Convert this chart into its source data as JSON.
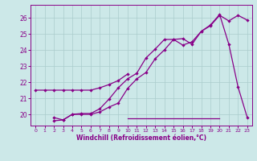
{
  "bg_color": "#cce8e8",
  "grid_color": "#aacccc",
  "line_color": "#880088",
  "xlabel": "Windchill (Refroidissement éolien,°C)",
  "xlim": [
    -0.5,
    23.5
  ],
  "ylim": [
    19.3,
    26.8
  ],
  "yticks": [
    20,
    21,
    22,
    23,
    24,
    25,
    26
  ],
  "xticks": [
    0,
    1,
    2,
    3,
    4,
    5,
    6,
    7,
    8,
    9,
    10,
    11,
    12,
    13,
    14,
    15,
    16,
    17,
    18,
    19,
    20,
    21,
    22,
    23
  ],
  "line1_x": [
    0,
    1,
    2,
    3,
    4,
    5,
    6,
    7,
    8,
    9,
    10
  ],
  "line1_y": [
    21.5,
    21.5,
    21.5,
    21.5,
    21.5,
    21.5,
    21.5,
    21.65,
    21.85,
    22.1,
    22.5
  ],
  "line2_x": [
    2,
    3,
    4,
    5,
    6,
    7,
    8,
    9,
    10,
    11,
    12,
    13,
    14,
    15,
    16,
    17,
    18,
    19,
    20,
    21,
    22,
    23
  ],
  "line2_y": [
    19.8,
    19.65,
    20.0,
    20.05,
    20.05,
    20.35,
    20.95,
    21.65,
    22.2,
    22.55,
    23.5,
    24.05,
    24.65,
    24.65,
    24.3,
    24.5,
    25.15,
    25.5,
    26.15,
    25.8,
    26.15,
    25.85
  ],
  "line3_x": [
    2,
    3,
    4,
    5,
    6,
    7,
    8,
    9,
    10,
    11,
    12,
    13,
    14,
    15,
    16,
    17,
    18,
    19,
    20,
    21,
    22,
    23
  ],
  "line3_y": [
    19.6,
    19.65,
    20.0,
    20.0,
    20.0,
    20.15,
    20.45,
    20.7,
    21.6,
    22.2,
    22.6,
    23.45,
    24.0,
    24.65,
    24.7,
    24.35,
    25.15,
    25.55,
    26.2,
    24.35,
    21.7,
    19.8
  ],
  "flat_line_x": [
    10,
    20
  ],
  "flat_line_y": [
    19.75,
    19.75
  ]
}
